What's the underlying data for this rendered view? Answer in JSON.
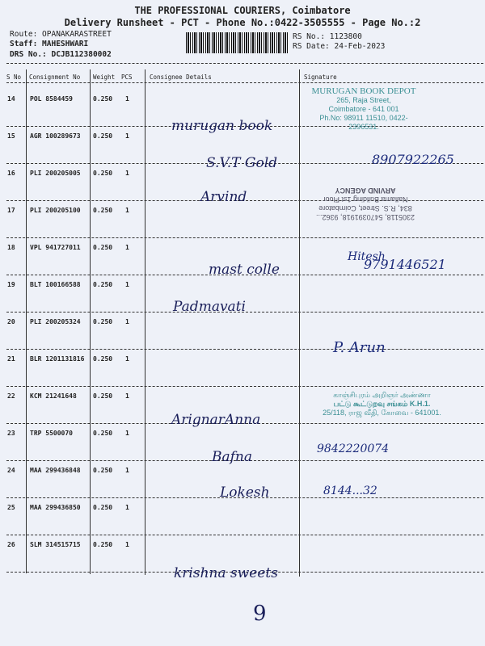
{
  "header": {
    "title": "THE PROFESSIONAL COURIERS, Coimbatore",
    "subtitle": "Delivery Runsheet - PCT - Phone No.:0422-3505555 - Page No.:2",
    "route": "Route: OPANAKARASTREET",
    "staff": "Staff: MAHESHWARI",
    "drs_no": "DRS No.: DCJB112380002",
    "rs_no": "RS No.: 1123800",
    "rs_date": "RS Date: 24-Feb-2023"
  },
  "columns": [
    "S No",
    "Consignment No",
    "Weight",
    "PCS",
    "Consignee Details",
    "Signature"
  ],
  "rows": [
    {
      "sno": "14",
      "cn": "POL 8584459",
      "weight": "0.250",
      "pcs": "1"
    },
    {
      "sno": "15",
      "cn": "AGR 100289673",
      "weight": "0.250",
      "pcs": "1"
    },
    {
      "sno": "16",
      "cn": "PLI 200205005",
      "weight": "0.250",
      "pcs": "1"
    },
    {
      "sno": "17",
      "cn": "PLI 200205100",
      "weight": "0.250",
      "pcs": "1"
    },
    {
      "sno": "18",
      "cn": "VPL 941727011",
      "weight": "0.250",
      "pcs": "1"
    },
    {
      "sno": "19",
      "cn": "BLT 100166588",
      "weight": "0.250",
      "pcs": "1"
    },
    {
      "sno": "20",
      "cn": "PLI 200205324",
      "weight": "0.250",
      "pcs": "1"
    },
    {
      "sno": "21",
      "cn": "BLR 1201131816",
      "weight": "0.250",
      "pcs": "1"
    },
    {
      "sno": "22",
      "cn": "KCM 21241648",
      "weight": "0.250",
      "pcs": "1"
    },
    {
      "sno": "23",
      "cn": "TRP 5500070",
      "weight": "0.250",
      "pcs": "1"
    },
    {
      "sno": "24",
      "cn": "MAA 299436848",
      "weight": "0.250",
      "pcs": "1"
    },
    {
      "sno": "25",
      "cn": "MAA 299436850",
      "weight": "0.250",
      "pcs": "1"
    },
    {
      "sno": "26",
      "cn": "SLM 314515715",
      "weight": "0.250",
      "pcs": "1"
    }
  ],
  "handwritten": {
    "c1": "murugan book",
    "c2": "S.V.T Gold",
    "c3": "Arvind",
    "c4": "mast colle",
    "c5": "Padmavati",
    "c6": "ArignarAnna",
    "c7": "Bafna",
    "c8": "Lokesh",
    "c9": "krishna sweets",
    "s1": "8907922265",
    "s2": "Hitesh",
    "s3": "9791446521",
    "s4": "P. Arun",
    "s5": "8144...32",
    "s6": "9842220074",
    "page_mark": "9"
  },
  "stamps": {
    "murugan": [
      "MURUGAN BOOK DEPOT",
      "265, Raja Street,",
      "Coimbatore - 641 001",
      "Ph.No: 98911 11510, 0422-2396531."
    ],
    "arvind": [
      "ARVIND AGENCY",
      "Nallama Building 1st Floor",
      "834, R.S. Street, Coimbatore",
      "2305118, 5470391918, 9362..."
    ],
    "anna": [
      "காஞ்சிபுரம் அறிஞர் அண்ணா",
      "பட்டு கூட்டுறவு சங்கம் K.H.1.",
      "25/118, ராஜ வீதி, கோவை - 641001."
    ]
  }
}
